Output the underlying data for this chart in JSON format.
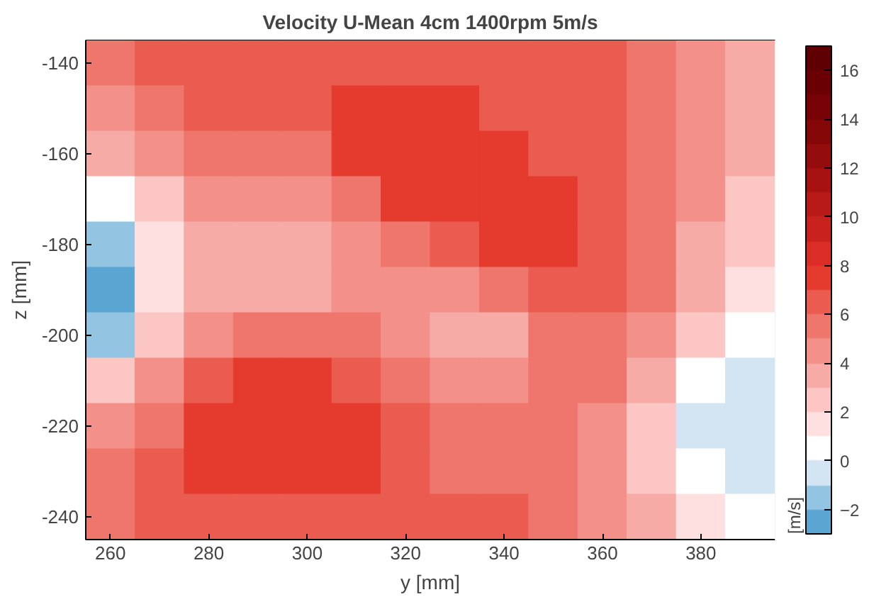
{
  "chart_data": {
    "type": "heatmap",
    "title": "Velocity U-Mean 4cm 1400rpm 5m/s",
    "xlabel": "y [mm]",
    "ylabel": "z [mm]",
    "clabel": "[m/s]",
    "categories": [
      "260",
      null,
      "280",
      null,
      "300",
      null,
      "320",
      null,
      "340",
      null,
      "360",
      null,
      "380",
      null
    ],
    "y_categories": [
      "-140",
      null,
      "-160",
      null,
      "-180",
      null,
      "-200",
      null,
      "-220",
      null,
      "-240"
    ],
    "cells": [
      [
        5.5,
        6.5,
        6.5,
        6.5,
        6.5,
        6.5,
        6.5,
        6.5,
        6.5,
        6.5,
        6.5,
        5.5,
        4.5,
        3.5
      ],
      [
        4.5,
        5.5,
        6.5,
        6.5,
        6.5,
        7.5,
        7.5,
        7.5,
        6.5,
        6.5,
        6.5,
        5.5,
        4.5,
        3.5
      ],
      [
        3.5,
        4.5,
        5.5,
        5.5,
        5.5,
        7.5,
        7.5,
        7.5,
        7.5,
        6.5,
        6.5,
        5.5,
        4.5,
        3.5
      ],
      [
        0.5,
        2.5,
        4.5,
        4.5,
        4.5,
        5.5,
        7.5,
        7.5,
        7.5,
        7.5,
        6.5,
        5.5,
        4.5,
        2.5
      ],
      [
        -1.5,
        1.5,
        3.5,
        3.5,
        3.5,
        4.5,
        5.5,
        6.5,
        7.5,
        7.5,
        6.5,
        5.5,
        3.5,
        2.5
      ],
      [
        -2.5,
        1.5,
        3.5,
        3.5,
        3.5,
        4.5,
        4.5,
        4.5,
        5.5,
        6.5,
        6.5,
        5.5,
        3.5,
        1.5
      ],
      [
        -1.5,
        2.5,
        4.5,
        5.5,
        5.5,
        5.5,
        4.5,
        3.5,
        3.5,
        5.5,
        5.5,
        4.5,
        2.5,
        0.5
      ],
      [
        2.5,
        4.5,
        6.5,
        7.5,
        7.5,
        6.5,
        5.5,
        4.5,
        4.5,
        5.5,
        5.5,
        3.5,
        0.5,
        -0.5
      ],
      [
        4.5,
        5.5,
        7.5,
        7.5,
        7.5,
        7.5,
        6.5,
        5.5,
        5.5,
        5.5,
        4.5,
        2.5,
        -0.5,
        -0.5
      ],
      [
        5.5,
        6.5,
        7.5,
        7.5,
        7.5,
        7.5,
        6.5,
        5.5,
        5.5,
        5.5,
        4.5,
        2.5,
        0.5,
        -0.5
      ],
      [
        5.5,
        6.5,
        6.5,
        6.5,
        6.5,
        6.5,
        6.5,
        6.5,
        6.5,
        5.5,
        4.5,
        3.5,
        1.5,
        0.5
      ]
    ],
    "clim": [
      -3,
      17
    ],
    "cticks": [
      -2,
      0,
      2,
      4,
      6,
      8,
      10,
      12,
      14,
      16
    ],
    "colors": [
      "#5aa5d2",
      "#93c4e2",
      "#d3e4f3",
      "#ffffff",
      "#fde0df",
      "#fbc6c3",
      "#f7aba6",
      "#f39089",
      "#ef766c",
      "#eb5c50",
      "#e53a2e",
      "#d92d26",
      "#c9221e",
      "#b71a17",
      "#a51211",
      "#940c0c",
      "#850708",
      "#770306",
      "#6b0004",
      "#5e0003"
    ]
  }
}
